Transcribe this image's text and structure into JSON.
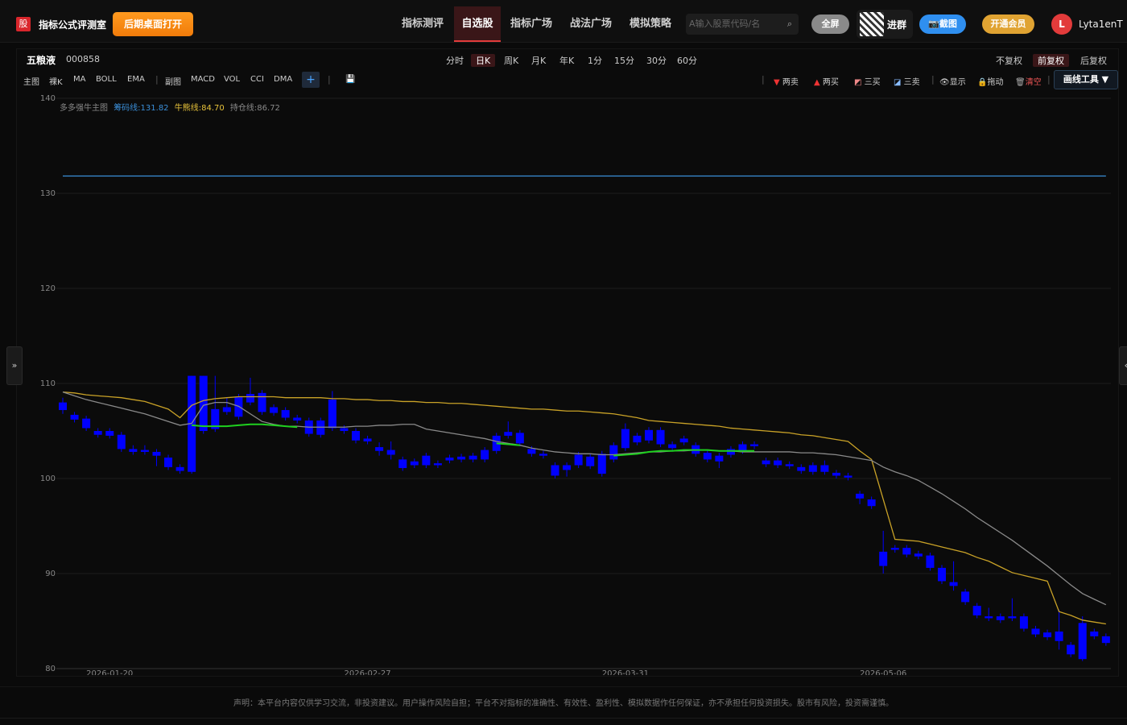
{
  "header": {
    "logo": "股",
    "title": "指标公式评测室",
    "open_button": "后期桌面打开",
    "nav": [
      "指标测评",
      "自选股",
      "指标广场",
      "战法广场",
      "模拟策略"
    ],
    "search_placeholder": "A输入股票代码/名",
    "fullscreen": "全屏",
    "group": "进群",
    "screenshot": "截图",
    "vip": "开通会员",
    "avatar": "L",
    "user": "Lyta1enT"
  },
  "toolbar": {
    "stock_name": "五粮液",
    "stock_code": "000858",
    "periods": [
      "分时",
      "日K",
      "周K",
      "月K",
      "年K",
      "1分",
      "15分",
      "30分",
      "60分"
    ],
    "adjust": [
      "不复权",
      "前复权",
      "后复权"
    ],
    "main_label": "主图",
    "main_indicators": [
      "裸K",
      "MA",
      "BOLL",
      "EMA"
    ],
    "sub_label": "副图",
    "sub_indicators": [
      "MACD",
      "VOL",
      "CCI",
      "DMA"
    ],
    "add": "+",
    "signals": [
      "两卖",
      "两买",
      "三买",
      "三卖"
    ],
    "tools": [
      "显示",
      "拖动",
      "清空"
    ],
    "draw_tool": "画线工具 ▼"
  },
  "chart_data": {
    "type": "candlestick",
    "indicator": "多多强牛主图",
    "color": "#0000ff",
    "grid": true,
    "ylim": [
      80,
      140
    ],
    "yticks": [
      80,
      90,
      100,
      110,
      120,
      130,
      140
    ],
    "categories": [
      null,
      null,
      null,
      null,
      "2026-01-20",
      null,
      null,
      null,
      null,
      null,
      null,
      null,
      null,
      null,
      null,
      null,
      null,
      null,
      null,
      null,
      null,
      null,
      null,
      null,
      null,
      null,
      "2026-02-27",
      null,
      null,
      null,
      null,
      null,
      null,
      null,
      null,
      null,
      null,
      null,
      null,
      null,
      null,
      null,
      null,
      null,
      null,
      null,
      null,
      null,
      "2026-03-31",
      null,
      null,
      null,
      null,
      null,
      null,
      null,
      null,
      null,
      null,
      null,
      null,
      null,
      null,
      null,
      null,
      null,
      null,
      null,
      null,
      null,
      "2026-05-06",
      null,
      null,
      null,
      null,
      null,
      null,
      null,
      null,
      null,
      null,
      null,
      null,
      null,
      null,
      null,
      null,
      null,
      null,
      null
    ],
    "open": [
      108,
      106.7,
      106.3,
      105,
      105,
      104.6,
      103.1,
      103,
      102.8,
      102.2,
      101.2,
      100.7,
      110.8,
      107.3,
      107.5,
      108.6,
      108.9,
      109,
      107.5,
      107.2,
      106.4,
      106.1,
      106.1,
      108.3,
      105.3,
      105,
      104.2,
      103.3,
      103,
      102,
      101.8,
      102.4,
      101.6,
      102.2,
      102.3,
      102.4,
      103,
      104.5,
      104.9,
      104.8,
      103.1,
      102.6,
      101.4,
      101.4,
      102.5,
      102.3,
      102.6,
      103.5,
      105.2,
      104.5,
      105.1,
      105.1,
      103.6,
      104.2,
      103.5,
      102.7,
      102.4,
      103.1,
      103.6,
      103.6,
      101.9,
      101.9,
      101.5,
      101.2,
      101.4,
      101.4,
      100.6,
      100.3,
      98.4,
      97.8,
      92.3,
      92.7,
      92.7,
      92.1,
      91.9,
      90.6,
      89.1,
      88.1,
      86.6,
      85.5,
      85.5,
      85.5,
      85.5,
      84.2,
      83.8,
      83.9,
      82.5,
      84.8,
      83.9,
      83.4
    ],
    "high": [
      108.5,
      107,
      106.6,
      105.3,
      105.3,
      104.9,
      103.5,
      103.5,
      103.1,
      102.5,
      101.5,
      110.8,
      110.8,
      110.8,
      108.5,
      108.9,
      110.6,
      109.3,
      107.8,
      107.5,
      106.7,
      106.4,
      106.4,
      109.2,
      105.6,
      105.3,
      104.5,
      103.8,
      103.9,
      102.3,
      102.1,
      102.7,
      101.9,
      102.5,
      102.6,
      102.7,
      103.3,
      104.8,
      106,
      105.1,
      103.4,
      102.9,
      101.7,
      101.7,
      102.8,
      102.6,
      102.9,
      103.8,
      105.8,
      104.8,
      105.4,
      105.4,
      103.9,
      104.5,
      103.8,
      103,
      102.7,
      103.4,
      103.9,
      103.9,
      102.2,
      102.2,
      101.8,
      101.5,
      101.7,
      101.9,
      100.9,
      100.6,
      98.7,
      98.1,
      94.5,
      93,
      93,
      92.4,
      92.2,
      90.9,
      91.3,
      88.4,
      86.9,
      86.4,
      85.8,
      87.4,
      85.8,
      84.5,
      84.1,
      86.2,
      82.8,
      85.5,
      84.2,
      83.7
    ],
    "low": [
      106.8,
      105.9,
      105,
      104.3,
      104.2,
      102.8,
      102.5,
      102.5,
      101.3,
      100.9,
      100.5,
      100.5,
      104.7,
      104.9,
      106.7,
      106.2,
      107.7,
      106.7,
      106.6,
      106.1,
      105.8,
      104.4,
      104.3,
      105,
      104.7,
      103.7,
      103.6,
      102.4,
      102,
      100.8,
      101.1,
      101.1,
      101.1,
      101.6,
      101.7,
      101.7,
      101.7,
      102.6,
      104.2,
      103.4,
      102.3,
      102.1,
      100,
      100.2,
      101.1,
      101,
      100.2,
      101.7,
      102.9,
      103.5,
      103.7,
      103.3,
      102.9,
      103.5,
      102.3,
      101.7,
      101.1,
      102.2,
      102.6,
      103.1,
      101.2,
      101.1,
      101,
      100.5,
      100.4,
      100.4,
      100,
      99.8,
      97.3,
      96.8,
      90,
      92.2,
      91.7,
      91.5,
      90.3,
      88.9,
      88.2,
      86.7,
      85.3,
      85,
      84.8,
      85,
      83.9,
      83.3,
      83,
      82,
      81.2,
      80.8,
      83.1,
      82.4
    ],
    "close": [
      107.2,
      106.2,
      105.3,
      104.6,
      104.5,
      103.1,
      102.8,
      102.8,
      102.4,
      101.2,
      100.8,
      110.8,
      105,
      105.2,
      107,
      106.5,
      108,
      107,
      106.9,
      106.4,
      106.1,
      104.7,
      104.6,
      105.3,
      105,
      104,
      103.9,
      102.9,
      102.5,
      101.1,
      101.4,
      101.4,
      101.4,
      101.9,
      102,
      102,
      102,
      102.9,
      104.5,
      103.7,
      102.6,
      102.4,
      100.3,
      100.9,
      101.4,
      101.3,
      100.5,
      102,
      103.2,
      103.8,
      104,
      103.6,
      103.2,
      103.8,
      102.6,
      102,
      101.8,
      102.5,
      102.9,
      103.4,
      101.5,
      101.4,
      101.3,
      100.8,
      100.7,
      100.7,
      100.3,
      100.1,
      97.9,
      97.1,
      90.8,
      92.5,
      92,
      91.8,
      90.6,
      89.2,
      88.7,
      87,
      85.6,
      85.3,
      85.1,
      85.3,
      84.2,
      83.6,
      83.3,
      82.9,
      81.5,
      81,
      83.4,
      82.7
    ],
    "series": [
      {
        "label": "筹码线:131.82",
        "color": "#3b8fd9",
        "value": 131.82
      },
      {
        "label": "牛熊线:84.70",
        "color": "#c9a227",
        "values": [
          109.1,
          109,
          108.8,
          108.7,
          108.6,
          108.5,
          108.3,
          108.1,
          107.7,
          107.3,
          106.4,
          107.7,
          108.2,
          108.4,
          108.5,
          108.6,
          108.6,
          108.6,
          108.6,
          108.5,
          108.5,
          108.5,
          108.5,
          108.4,
          108.4,
          108.3,
          108.3,
          108.2,
          108.2,
          108.1,
          108.1,
          108,
          108,
          107.9,
          107.9,
          107.8,
          107.7,
          107.6,
          107.5,
          107.4,
          107.3,
          107.3,
          107.2,
          107.1,
          107.1,
          107,
          106.9,
          106.8,
          106.6,
          106.4,
          106.1,
          106,
          105.9,
          105.8,
          105.7,
          105.6,
          105.5,
          105.3,
          105.2,
          105.1,
          105,
          104.9,
          104.8,
          104.6,
          104.5,
          104.3,
          104.1,
          103.9,
          102.9,
          102,
          97.8,
          93.6,
          93.5,
          93.4,
          93.1,
          92.8,
          92.5,
          92.2,
          91.7,
          91.3,
          90.7,
          90.1,
          89.8,
          89.5,
          89.2,
          86,
          85.6,
          85.1,
          84.9,
          84.7
        ]
      },
      {
        "label": "持仓线:86.72",
        "color": "#8a8a8a",
        "values": [
          109.1,
          108.7,
          108.3,
          108,
          107.7,
          107.4,
          107.1,
          106.8,
          106.4,
          106,
          105.6,
          105.8,
          107.7,
          108,
          108,
          107.6,
          106.8,
          106,
          105.7,
          105.5,
          105.5,
          105.4,
          105.4,
          105.4,
          105.4,
          105.5,
          105.5,
          105.6,
          105.6,
          105.7,
          105.7,
          105.2,
          105,
          104.8,
          104.6,
          104.4,
          104.2,
          103.9,
          103.7,
          103.5,
          103.2,
          103,
          102.8,
          102.7,
          102.6,
          102.6,
          102.5,
          102.5,
          102.6,
          102.7,
          102.8,
          102.8,
          102.9,
          102.9,
          103,
          103,
          102.9,
          102.9,
          102.8,
          102.8,
          102.8,
          102.8,
          102.8,
          102.7,
          102.7,
          102.6,
          102.5,
          102.3,
          102.1,
          101.9,
          101.2,
          100.7,
          100.3,
          99.8,
          99.1,
          98.4,
          97.6,
          96.8,
          95.9,
          95.1,
          94.3,
          93.5,
          92.6,
          91.7,
          90.8,
          89.8,
          88.8,
          87.9,
          87.3,
          86.72
        ]
      },
      {
        "color": "#1fd11f",
        "values": [
          null,
          null,
          null,
          null,
          null,
          null,
          null,
          null,
          null,
          null,
          null,
          105.6,
          105.5,
          105.5,
          105.5,
          105.6,
          105.7,
          105.7,
          105.6,
          105.5,
          105.4,
          null,
          null,
          null,
          null,
          null,
          null,
          null,
          null,
          null,
          null,
          null,
          null,
          null,
          null,
          null,
          null,
          103.7,
          103.6,
          103.5,
          null,
          null,
          null,
          null,
          null,
          null,
          null,
          102.4,
          102.5,
          102.6,
          102.8,
          102.9,
          102.9,
          103,
          103,
          103,
          102.9,
          102.9,
          102.9,
          102.9,
          null,
          null,
          null,
          null,
          null,
          null,
          null,
          null,
          null,
          null,
          null,
          null,
          null,
          null,
          null,
          null,
          null,
          null,
          null,
          null,
          null,
          null,
          null,
          null,
          null,
          null,
          null,
          null,
          null,
          null
        ]
      }
    ]
  },
  "footer": {
    "disclaimer": "声明：本平台内容仅供学习交流，非投资建议。用户操作风险自担；平台不对指标的准确性、有效性、盈利性、模拟数据作任何保证，亦不承担任何投资损失。股市有风险，投资需谨慎。"
  }
}
